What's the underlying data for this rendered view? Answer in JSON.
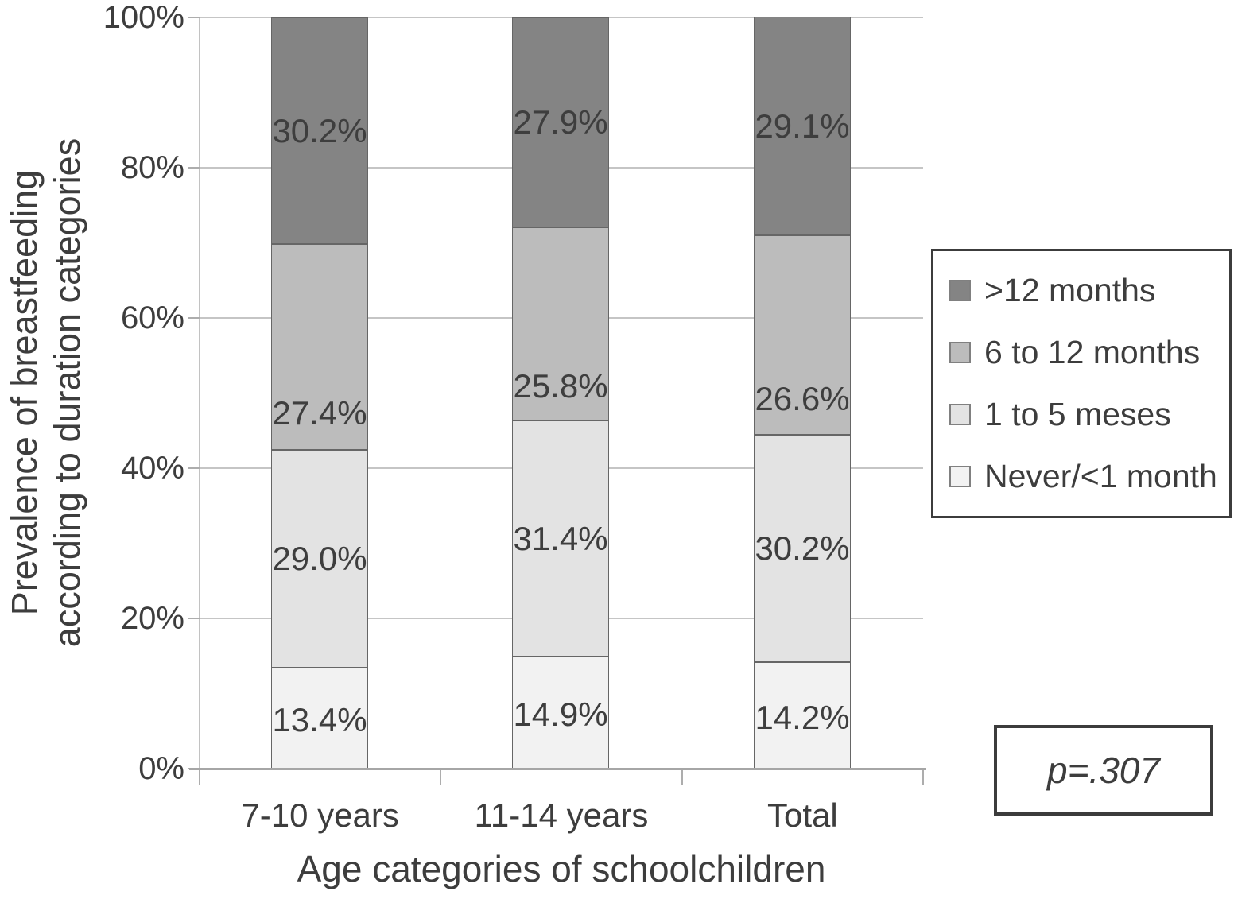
{
  "chart_data": {
    "type": "bar",
    "subtype": "stacked-percentage-column",
    "title": "",
    "xlabel": "Age categories of schoolchildren",
    "ylabel_lines": [
      "Prevalence of breastfeeding",
      "according to duration categories"
    ],
    "categories": [
      "7-10 years",
      "11-14 years",
      "Total"
    ],
    "series": [
      {
        "name": "Never/<1 month",
        "color": "#f2f2f2",
        "values": [
          13.4,
          14.9,
          14.2
        ],
        "label_frac": 0.52
      },
      {
        "name": "1 to 5 meses",
        "color": "#e3e3e3",
        "values": [
          29.0,
          31.4,
          30.2
        ],
        "label_frac": 0.5
      },
      {
        "name": "6 to 12 months",
        "color": "#bcbcbc",
        "values": [
          27.4,
          25.8,
          26.6
        ],
        "label_frac": 0.82
      },
      {
        "name": ">12 months",
        "color": "#848484",
        "values": [
          30.2,
          27.9,
          29.1
        ],
        "label_frac": 0.5
      }
    ],
    "legend_order": [
      ">12 months",
      "6 to 12 months",
      "1 to 5 meses",
      "Never/<1 month"
    ],
    "legend_position": "right",
    "y_ticks": [
      {
        "value": 0,
        "label": "0%"
      },
      {
        "value": 20,
        "label": "20%"
      },
      {
        "value": 40,
        "label": "40%"
      },
      {
        "value": 60,
        "label": "60%"
      },
      {
        "value": 80,
        "label": "80%"
      },
      {
        "value": 100,
        "label": "100%"
      }
    ],
    "ylim": [
      0,
      100
    ],
    "grid": true,
    "annotation": "p=.307"
  }
}
